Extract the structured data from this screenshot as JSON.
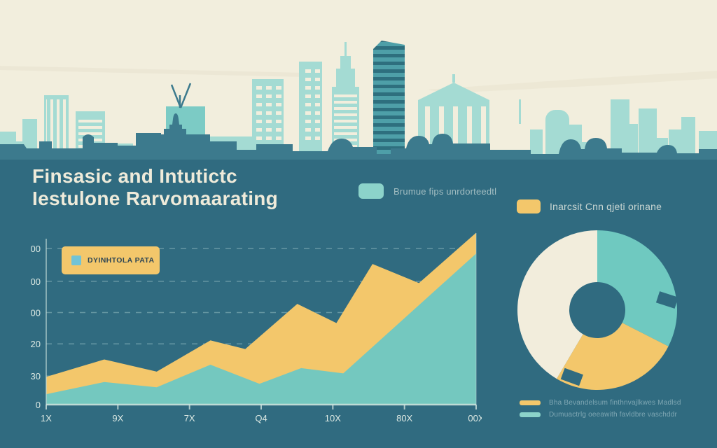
{
  "colors": {
    "sky": "#F2EEDD",
    "contrail": "#E9E4D1",
    "lightBuilding": "#A4DBD3",
    "midBuilding": "#7CCBC5",
    "midDark": "#4E9FA8",
    "stripeDark": "#2E6F7E",
    "silhouette": "#3C7A8D",
    "bg": "#306B80",
    "yellow": "#F3C76B",
    "chartTeal": "#74C8BF",
    "donutTeal": "#6FC9C0",
    "donutCream": "#F2EDDC",
    "legendSwatchTeal": "#8CD3CA",
    "innerSwatch": "#72C3D6",
    "title": "#EFEBDA"
  },
  "title": {
    "line1": "Finsasic and Intutictc",
    "line2": "Iestulone Rarvomaarating"
  },
  "legend_top": {
    "items": [
      {
        "label": "Brumue fips unrdorteedtl",
        "swatch_color": "#8CD3CA"
      },
      {
        "label": "Inarcsit Cnn qjeti orinane",
        "swatch_color": "#F3C76B"
      }
    ]
  },
  "chart_data": [
    {
      "type": "area",
      "title": "",
      "xlabel": "",
      "ylabel": "",
      "x_labels": [
        "1X",
        "9X",
        "7X",
        "Q4",
        "10X",
        "80X",
        "00X"
      ],
      "y_ticks": [
        {
          "label": "00",
          "v": 90
        },
        {
          "label": "00",
          "v": 71
        },
        {
          "label": "00",
          "v": 53
        },
        {
          "label": "20",
          "v": 35
        },
        {
          "label": "30",
          "v": 16.5
        },
        {
          "label": "0",
          "v": 0
        }
      ],
      "ylim": [
        0,
        100
      ],
      "grid": "horizontal-dashed",
      "legend_position": "inner-top-left",
      "inner_legend_label": "DYINHTOLA PATA",
      "series": [
        {
          "name": "Inarcsit Cnn qjeti orinane",
          "color_key": "yellow",
          "points": [
            [
              0,
              16
            ],
            [
              0.135,
              26
            ],
            [
              0.257,
              19
            ],
            [
              0.382,
              37
            ],
            [
              0.463,
              32
            ],
            [
              0.584,
              58
            ],
            [
              0.675,
              47
            ],
            [
              0.759,
              81
            ],
            [
              0.867,
              70
            ],
            [
              1,
              99
            ]
          ]
        },
        {
          "name": "Brumue fips unrdorteedtl",
          "color_key": "chartTeal",
          "points": [
            [
              0,
              6
            ],
            [
              0.135,
              13
            ],
            [
              0.257,
              10
            ],
            [
              0.382,
              23
            ],
            [
              0.496,
              12
            ],
            [
              0.593,
              21
            ],
            [
              0.691,
              18
            ],
            [
              1,
              87
            ]
          ]
        }
      ]
    },
    {
      "type": "pie",
      "title": "",
      "style": "donut",
      "segments": [
        {
          "name": "teal segment",
          "value": 32.5,
          "color_key": "donutTeal"
        },
        {
          "name": "yellow segment",
          "value": 26.0,
          "color_key": "yellow"
        },
        {
          "name": "cream segment",
          "value": 41.5,
          "color_key": "donutCream"
        }
      ]
    }
  ],
  "legend_bottom": {
    "items": [
      {
        "label": "Bha Bevandelsum finthnvajlkwes Madlsd",
        "swatch_color": "#F3C76B"
      },
      {
        "label": "Dumuactrlg oeeawith favldbre vaschddr",
        "swatch_color": "#8CD3CA"
      }
    ]
  }
}
